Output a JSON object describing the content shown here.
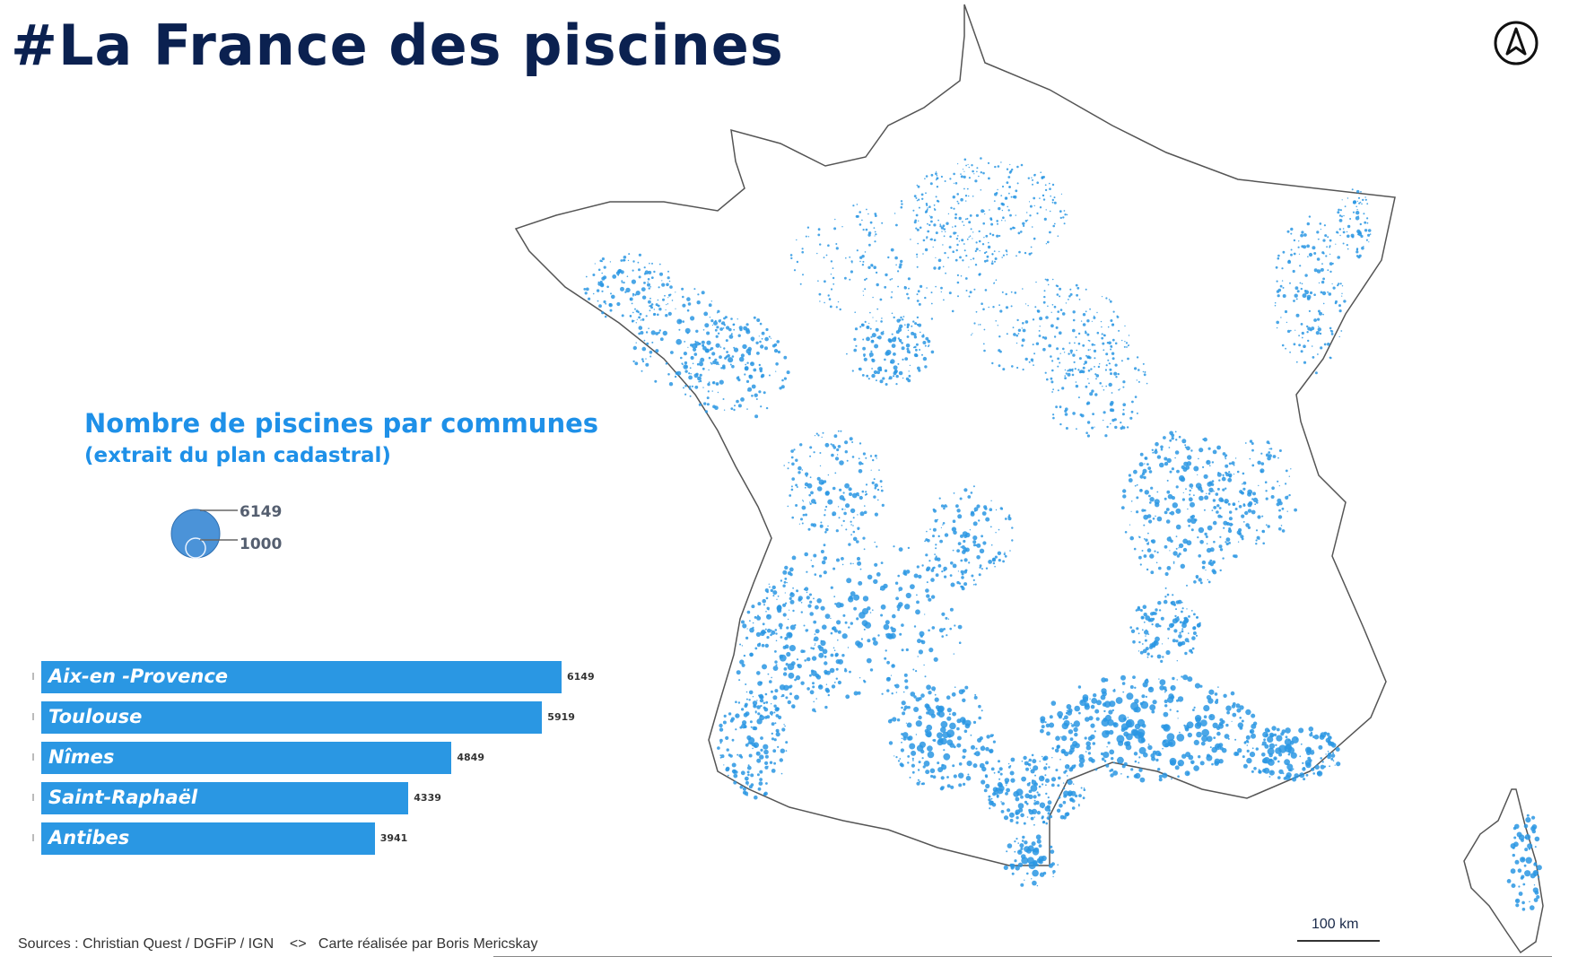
{
  "title": "#La France des piscines",
  "compass": {
    "icon": "north-arrow-icon"
  },
  "legend": {
    "title": "Nombre de piscines par communes",
    "subtitle": "(extrait du plan cadastral)",
    "size_max": "6149",
    "size_min": "1000",
    "color": "#2a97e3"
  },
  "chart_data": {
    "type": "bar",
    "orientation": "horizontal",
    "categories": [
      "Aix-en -Provence",
      "Toulouse",
      "Nîmes",
      "Saint-Raphaël",
      "Antibes"
    ],
    "values": [
      6149,
      5919,
      4849,
      4339,
      3941
    ],
    "value_labels": [
      "6149",
      "5919",
      "4849",
      "4339",
      "3941"
    ],
    "xlim": [
      0,
      6149
    ],
    "color": "#2a97e3"
  },
  "sources": "Sources : Christian Quest / DGFiP / IGN    <>   Carte réalisée par Boris Mericskay",
  "scale": {
    "label": "100 km"
  },
  "colors": {
    "title": "#0b2150",
    "accent": "#1e90e8",
    "symbol": "#2a97e3",
    "outline": "#555555"
  }
}
